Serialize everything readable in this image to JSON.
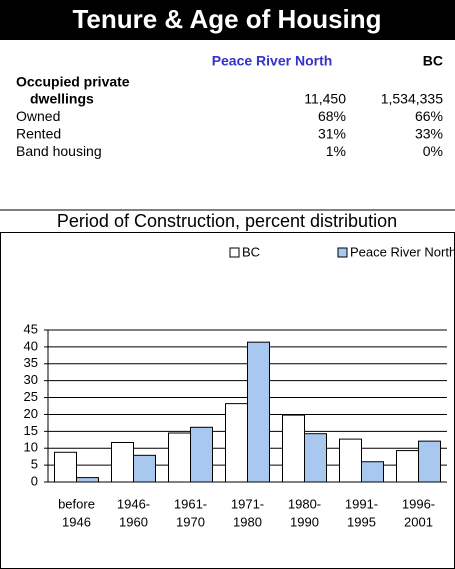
{
  "table": {
    "title": "Tenure & Age of Housing",
    "columns": [
      "Peace River North",
      "BC"
    ],
    "rows": [
      {
        "label": [
          "Occupied private",
          "dwellings"
        ],
        "values": [
          "11,450",
          "1,534,335"
        ]
      },
      {
        "label": [
          "Owned"
        ],
        "values": [
          "68%",
          "66%"
        ]
      },
      {
        "label": [
          "Rented"
        ],
        "values": [
          "31%",
          "33%"
        ]
      },
      {
        "label": [
          "Band housing"
        ],
        "values": [
          "1%",
          "0%"
        ]
      }
    ]
  },
  "chart_data": {
    "type": "bar",
    "title": "Period of Construction, percent distribution",
    "categories": [
      [
        "before",
        "1946"
      ],
      [
        "1946-",
        "1960"
      ],
      [
        "1961-",
        "1970"
      ],
      [
        "1971-",
        "1980"
      ],
      [
        "1980-",
        "1990"
      ],
      [
        "1991-",
        "1995"
      ],
      [
        "1996-",
        "2001"
      ]
    ],
    "series": [
      {
        "name": "BC",
        "color": "#ffffff",
        "values": [
          8.8,
          11.7,
          14.5,
          23.2,
          19.8,
          12.7,
          9.3
        ]
      },
      {
        "name": "Peace River North",
        "color": "#a8c8f0",
        "values": [
          1.3,
          7.9,
          16.2,
          41.4,
          14.3,
          6.0,
          12.1
        ]
      }
    ],
    "ylim": [
      0,
      45
    ],
    "yticks": [
      0,
      5,
      10,
      15,
      20,
      25,
      30,
      35,
      40,
      45
    ],
    "grid": true,
    "legend": "top"
  }
}
